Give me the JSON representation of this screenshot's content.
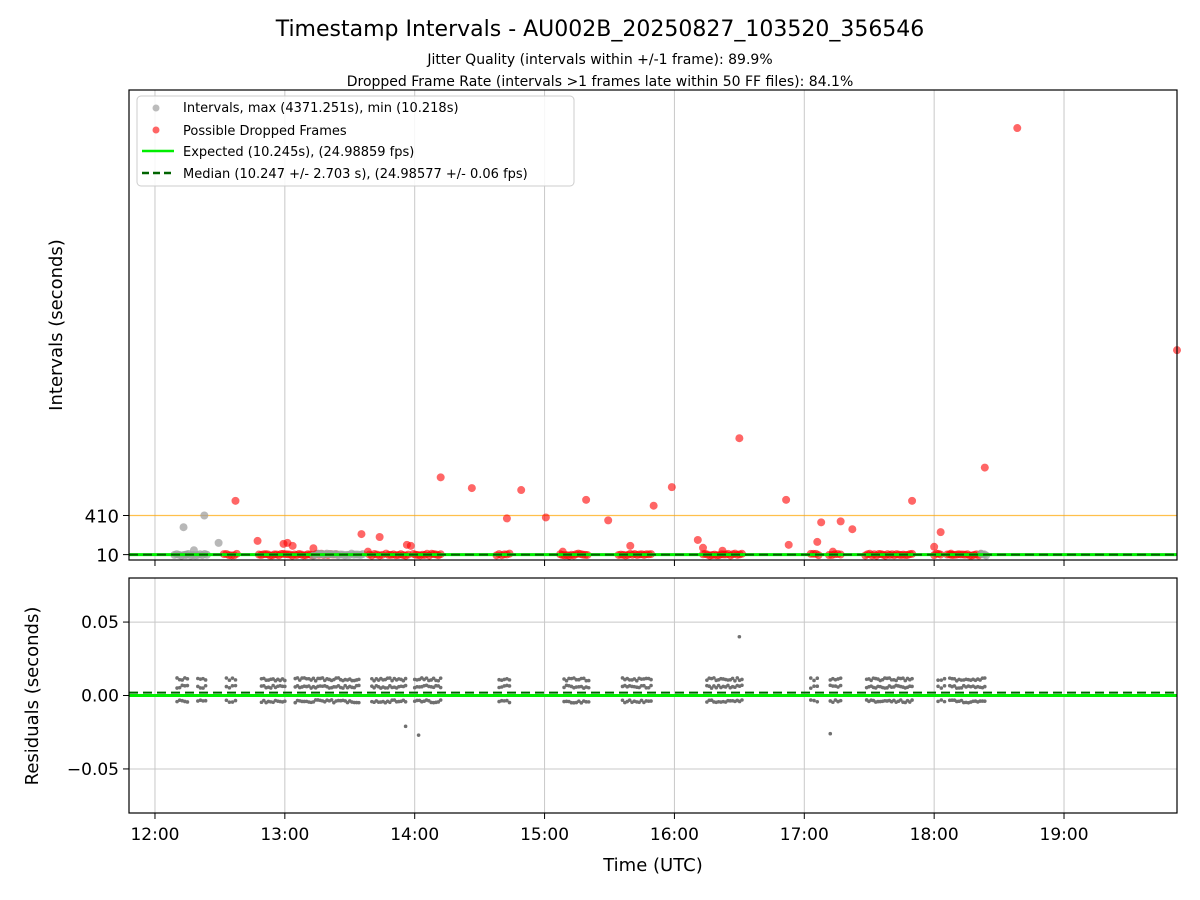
{
  "figure": {
    "title": "Timestamp Intervals - AU002B_20250827_103520_356546",
    "subtitle_1": "Jitter Quality (intervals within +/-1 frame): 89.9%",
    "subtitle_2": "Dropped Frame Rate (intervals >1 frames late within 50 FF files): 84.1%"
  },
  "colors": {
    "intervals": "#a0a0a0",
    "dropped": "#ff0000",
    "expected": "#00ee00",
    "median": "#006400",
    "threshold": "#ffa500",
    "residuals": "#707070",
    "grid": "#c8c8c8"
  },
  "chart_data": [
    {
      "type": "scatter",
      "panel": "top",
      "ylabel": "Intervals (seconds)",
      "xlabel": "",
      "x_unit": "time of day (UTC), decimal hours",
      "xlim": [
        11.8,
        19.87
      ],
      "ylim": [
        -45,
        4760
      ],
      "y_ticks": [
        10,
        410
      ],
      "y_tick_labels": [
        "10",
        "410"
      ],
      "x_ticks": [
        12,
        13,
        14,
        15,
        16,
        17,
        18,
        19
      ],
      "x_tick_labels": [
        "12:00",
        "13:00",
        "14:00",
        "15:00",
        "16:00",
        "17:00",
        "18:00",
        "19:00"
      ],
      "grid": "vertical",
      "legend_position": "top-left",
      "legend": [
        "Intervals, max (4371.251s), min (10.218s)",
        "Possible Dropped Frames",
        "Expected (10.245s), (24.98859 fps)",
        "Median (10.247 +/- 2.703 s), (24.98577 +/- 0.06 fps)"
      ],
      "lines": {
        "expected": 10.245,
        "median": 10.247,
        "threshold": 410
      },
      "series": [
        {
          "name": "Intervals, max (4371.251s), min (10.218s)",
          "x": [
            12.22,
            12.24,
            12.3,
            12.38,
            12.49
          ],
          "y": [
            290,
            10,
            55,
            410,
            130
          ]
        },
        {
          "name": "Possible Dropped Frames",
          "x": [
            12.62,
            12.79,
            12.99,
            13.02,
            13.06,
            13.22,
            13.59,
            13.64,
            13.73,
            13.94,
            13.97,
            14.2,
            14.44,
            14.71,
            14.82,
            15.01,
            15.14,
            15.32,
            15.49,
            15.66,
            15.84,
            15.98,
            16.18,
            16.22,
            16.37,
            16.5,
            16.86,
            16.88,
            17.1,
            17.13,
            17.22,
            17.28,
            17.37,
            17.83,
            18.0,
            18.05,
            18.13,
            18.39,
            18.64,
            19.87
          ],
          "y": [
            560,
            150,
            120,
            130,
            100,
            75,
            220,
            40,
            190,
            110,
            100,
            800,
            690,
            380,
            670,
            390,
            40,
            570,
            360,
            100,
            510,
            700,
            160,
            80,
            50,
            1200,
            570,
            110,
            140,
            340,
            40,
            350,
            270,
            560,
            90,
            240,
            20,
            900,
            4371.251,
            2100
          ]
        }
      ]
    },
    {
      "type": "scatter",
      "panel": "bottom",
      "ylabel": "Residuals (seconds)",
      "xlabel": "Time (UTC)",
      "xlim": [
        11.8,
        19.87
      ],
      "ylim": [
        -0.08,
        0.08
      ],
      "y_ticks": [
        -0.05,
        0.0,
        0.05
      ],
      "y_tick_labels": [
        "−0.05",
        "0.00",
        "0.05"
      ],
      "grid": "both",
      "lines": {
        "expected": 0.0,
        "median": 0.002
      },
      "series": [
        {
          "name": "",
          "x": [
            13.93,
            14.03,
            16.5,
            17.2
          ],
          "y": [
            -0.021,
            -0.027,
            0.04,
            -0.026
          ]
        }
      ]
    }
  ]
}
